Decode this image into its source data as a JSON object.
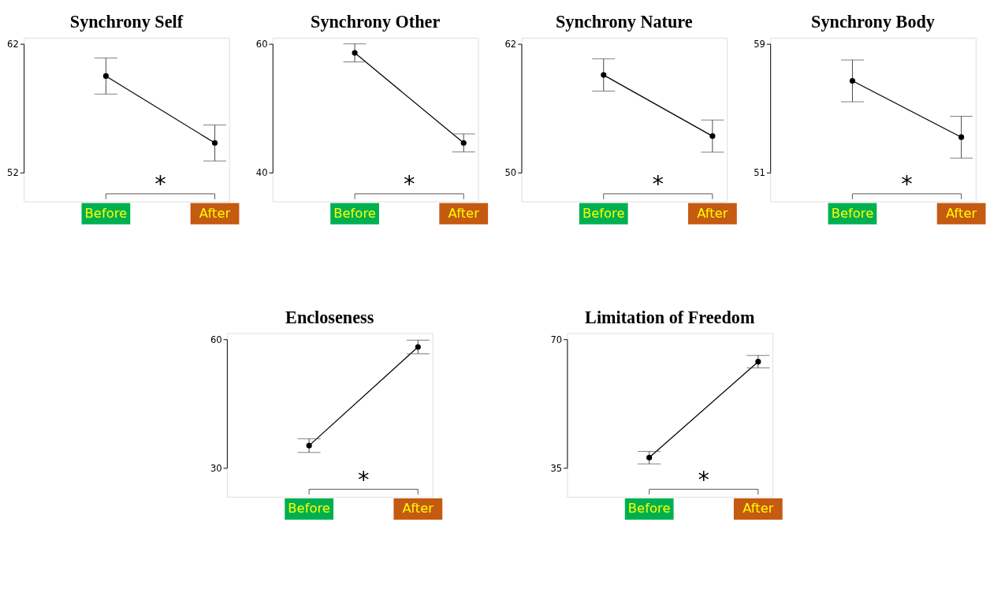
{
  "chart_data": [
    {
      "type": "line",
      "title": "Synchrony Self",
      "categories": [
        "Before",
        "After"
      ],
      "series": [
        {
          "color": "#000000",
          "values": [
            59.5,
            54.3
          ],
          "errors": [
            1.4,
            1.4
          ]
        }
      ],
      "ylim": [
        52,
        62
      ],
      "yticks": [
        52,
        62
      ],
      "marker": "circle",
      "annotations": [
        "*"
      ]
    },
    {
      "type": "line",
      "title": "Synchrony Other",
      "categories": [
        "Before",
        "After"
      ],
      "series": [
        {
          "color": "#000000",
          "values": [
            58.6,
            44.6
          ],
          "errors": [
            1.4,
            1.4
          ]
        }
      ],
      "ylim": [
        40,
        60
      ],
      "yticks": [
        40,
        60
      ],
      "marker": "circle",
      "annotations": [
        "*"
      ]
    },
    {
      "type": "line",
      "title": "Synchrony Nature",
      "categories": [
        "Before",
        "After"
      ],
      "series": [
        {
          "color": "#000000",
          "values": [
            59.1,
            53.4
          ],
          "errors": [
            1.5,
            1.5
          ]
        }
      ],
      "ylim": [
        50,
        62
      ],
      "yticks": [
        50,
        62
      ],
      "marker": "circle",
      "annotations": [
        "*"
      ]
    },
    {
      "type": "line",
      "title": "Synchrony Body",
      "categories": [
        "Before",
        "After"
      ],
      "series": [
        {
          "color": "#000000",
          "values": [
            56.7,
            53.2
          ],
          "errors": [
            1.3,
            1.3
          ]
        }
      ],
      "ylim": [
        51,
        59
      ],
      "yticks": [
        51,
        59
      ],
      "marker": "circle",
      "annotations": [
        "*"
      ]
    },
    {
      "type": "line",
      "title": "Encloseness",
      "categories": [
        "Before",
        "After"
      ],
      "series": [
        {
          "color": "#000000",
          "values": [
            35.2,
            58.2
          ],
          "errors": [
            1.6,
            1.6
          ]
        }
      ],
      "ylim": [
        30,
        60
      ],
      "yticks": [
        30,
        60
      ],
      "marker": "circle",
      "annotations": [
        "*"
      ]
    },
    {
      "type": "line",
      "title": "Limitation of Freedom",
      "categories": [
        "Before",
        "After"
      ],
      "series": [
        {
          "color": "#000000",
          "values": [
            37.8,
            63.9
          ],
          "errors": [
            1.7,
            1.7
          ]
        }
      ],
      "ylim": [
        35,
        70
      ],
      "yticks": [
        35,
        70
      ],
      "marker": "circle",
      "annotations": [
        "*"
      ]
    }
  ]
}
